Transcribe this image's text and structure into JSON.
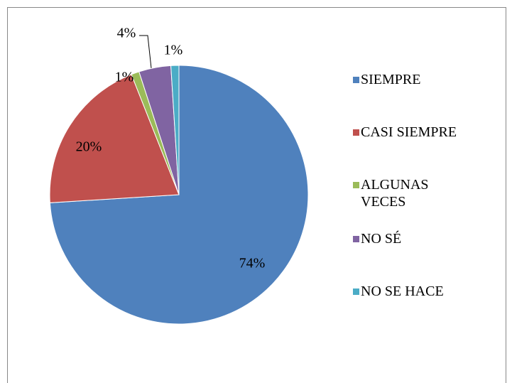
{
  "chart_data": {
    "type": "pie",
    "categories": [
      "SIEMPRE",
      "CASI SIEMPRE",
      "ALGUNAS VECES",
      "NO SÉ",
      "NO SE HACE"
    ],
    "values": [
      74,
      20,
      1,
      4,
      1
    ],
    "value_labels": [
      "74%",
      "20%",
      "1%",
      "4%",
      "1%"
    ],
    "colors": [
      "#4f81bd",
      "#c0504d",
      "#9bbb59",
      "#8064a2",
      "#4bacc6"
    ],
    "legend": "right"
  }
}
